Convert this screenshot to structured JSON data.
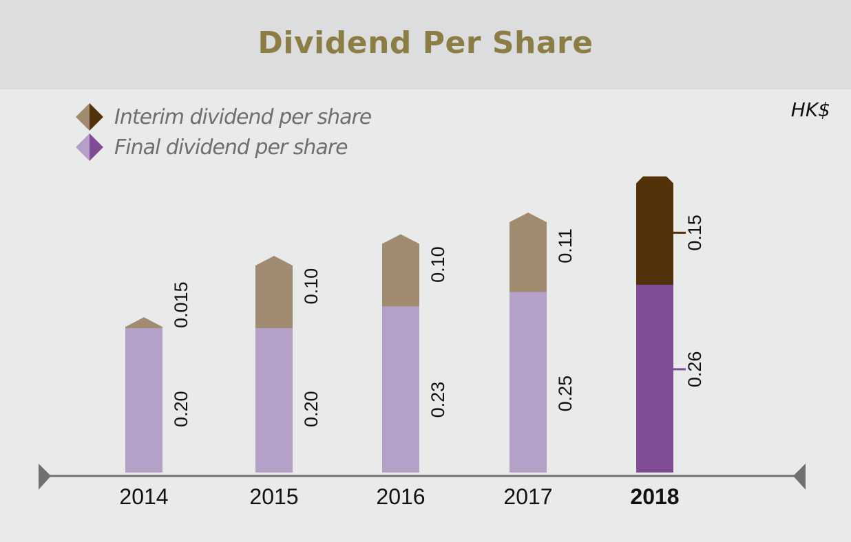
{
  "chart_data": {
    "type": "bar",
    "stacked": true,
    "title": "Dividend Per Share",
    "unit": "HK$",
    "categories": [
      "2014",
      "2015",
      "2016",
      "2017",
      "2018"
    ],
    "highlight_category": "2018",
    "series": [
      {
        "name": "Final dividend per share",
        "values": [
          0.2,
          0.2,
          0.23,
          0.25,
          0.26
        ],
        "labels": [
          "0.20",
          "0.20",
          "0.23",
          "0.25",
          "0.26"
        ],
        "color": "#b5a1c8",
        "highlight_color": "#804c95"
      },
      {
        "name": "Interim dividend per share",
        "values": [
          0.015,
          0.1,
          0.1,
          0.11,
          0.15
        ],
        "labels": [
          "0.015",
          "0.10",
          "0.10",
          "0.11",
          "0.15"
        ],
        "color": "#a08a70",
        "highlight_color": "#523309"
      }
    ],
    "legend_position": "top-left",
    "grid": false
  },
  "legend": {
    "interim_label": "Interim dividend per share",
    "final_label": "Final dividend per share"
  },
  "colors": {
    "title": "#8c7d45",
    "axis": "#707070",
    "interim": "#a08a70",
    "interim_dark": "#523309",
    "final": "#b5a1c8",
    "final_dark": "#804c95"
  }
}
